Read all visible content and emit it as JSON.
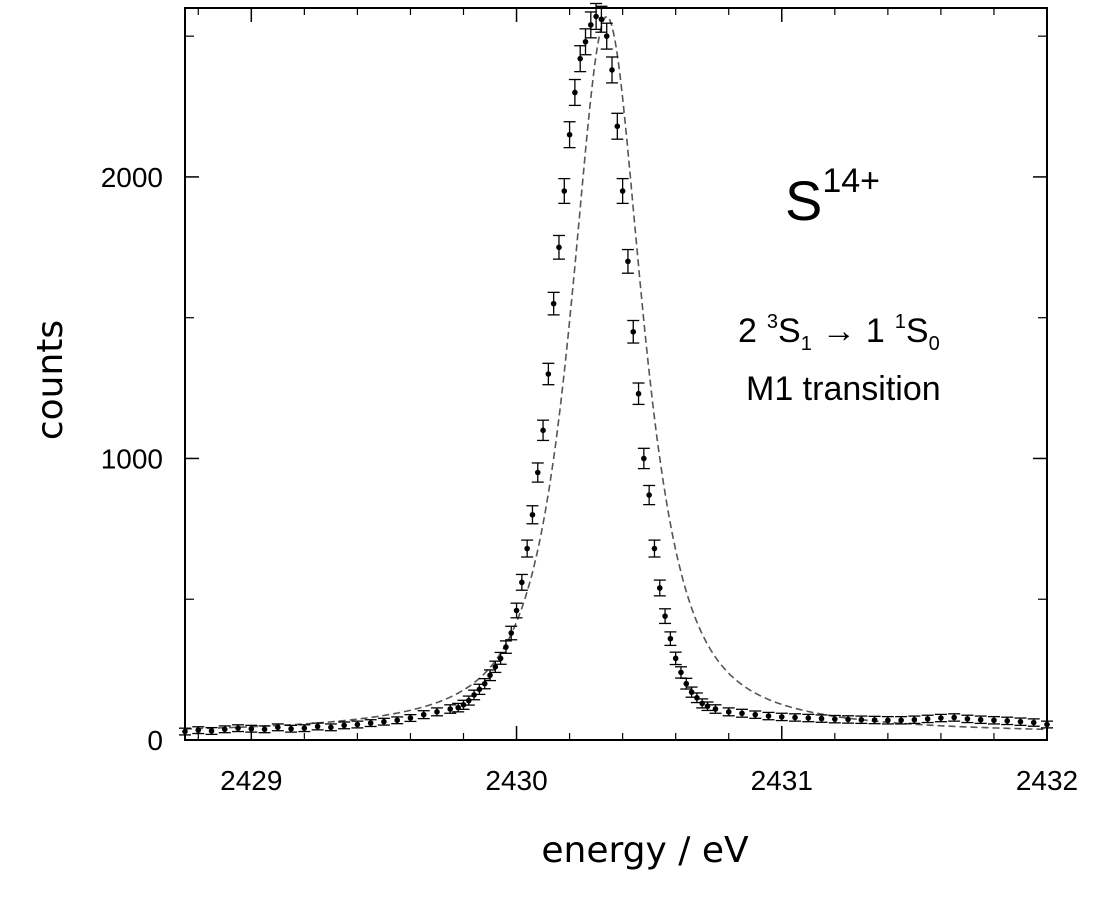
{
  "chart_data": {
    "type": "scatter",
    "xlabel": "energy / eV",
    "ylabel": "counts",
    "xlim": [
      2428.75,
      2432.0
    ],
    "ylim": [
      0,
      2600
    ],
    "xticks": [
      2429,
      2430,
      2431,
      2432
    ],
    "yticks": [
      0,
      1000,
      2000
    ],
    "annotation": {
      "ion": "S",
      "charge": "14+",
      "transition_line": {
        "upper_n": "2",
        "upper_mult": "3",
        "upper_L": "S",
        "upper_J": "1",
        "arrow": "→",
        "lower_n": "1",
        "lower_mult": "1",
        "lower_L": "S",
        "lower_J": "0"
      },
      "transition_type": "M1 transition"
    },
    "fit": {
      "name": "fit",
      "style": "dashed",
      "center": 2430.34,
      "peak": 2570,
      "fwhm": 0.36,
      "background": 20
    },
    "series": [
      {
        "name": "data",
        "x": [
          2428.75,
          2428.8,
          2428.85,
          2428.9,
          2428.95,
          2429.0,
          2429.05,
          2429.1,
          2429.15,
          2429.2,
          2429.25,
          2429.3,
          2429.35,
          2429.4,
          2429.45,
          2429.5,
          2429.55,
          2429.6,
          2429.65,
          2429.7,
          2429.75,
          2429.78,
          2429.8,
          2429.82,
          2429.84,
          2429.86,
          2429.88,
          2429.9,
          2429.92,
          2429.94,
          2429.96,
          2429.98,
          2430.0,
          2430.02,
          2430.04,
          2430.06,
          2430.08,
          2430.1,
          2430.12,
          2430.14,
          2430.16,
          2430.18,
          2430.2,
          2430.22,
          2430.24,
          2430.26,
          2430.28,
          2430.3,
          2430.32,
          2430.34,
          2430.36,
          2430.38,
          2430.4,
          2430.42,
          2430.44,
          2430.46,
          2430.48,
          2430.5,
          2430.52,
          2430.54,
          2430.56,
          2430.58,
          2430.6,
          2430.62,
          2430.64,
          2430.66,
          2430.68,
          2430.7,
          2430.72,
          2430.75,
          2430.8,
          2430.85,
          2430.9,
          2430.95,
          2431.0,
          2431.05,
          2431.1,
          2431.15,
          2431.2,
          2431.25,
          2431.3,
          2431.35,
          2431.4,
          2431.45,
          2431.5,
          2431.55,
          2431.6,
          2431.65,
          2431.7,
          2431.75,
          2431.8,
          2431.85,
          2431.9,
          2431.95,
          2432.0
        ],
        "y": [
          30,
          35,
          32,
          38,
          42,
          40,
          38,
          45,
          40,
          42,
          48,
          45,
          52,
          55,
          60,
          65,
          70,
          78,
          90,
          100,
          110,
          115,
          125,
          140,
          160,
          180,
          200,
          230,
          260,
          290,
          330,
          380,
          460,
          560,
          680,
          800,
          950,
          1100,
          1300,
          1550,
          1750,
          1950,
          2150,
          2300,
          2420,
          2480,
          2540,
          2570,
          2560,
          2500,
          2380,
          2180,
          1950,
          1700,
          1450,
          1230,
          1000,
          870,
          680,
          540,
          440,
          360,
          290,
          240,
          200,
          170,
          150,
          130,
          120,
          110,
          100,
          95,
          90,
          85,
          82,
          80,
          78,
          76,
          74,
          73,
          72,
          71,
          70,
          70,
          72,
          75,
          78,
          80,
          75,
          72,
          70,
          68,
          65,
          62,
          55
        ],
        "error": [
          12,
          12,
          12,
          12,
          12,
          12,
          12,
          12,
          12,
          12,
          12,
          12,
          12,
          12,
          12,
          12,
          12,
          12,
          14,
          14,
          15,
          15,
          16,
          16,
          17,
          18,
          18,
          19,
          20,
          21,
          22,
          24,
          26,
          28,
          30,
          32,
          34,
          36,
          38,
          40,
          42,
          44,
          46,
          46,
          46,
          46,
          46,
          46,
          46,
          46,
          46,
          46,
          44,
          42,
          40,
          38,
          36,
          34,
          30,
          28,
          26,
          24,
          22,
          20,
          19,
          18,
          17,
          16,
          15,
          15,
          14,
          14,
          13,
          13,
          13,
          13,
          13,
          13,
          13,
          13,
          13,
          13,
          13,
          13,
          13,
          13,
          13,
          13,
          13,
          13,
          13,
          13,
          13,
          13,
          12
        ]
      }
    ]
  }
}
